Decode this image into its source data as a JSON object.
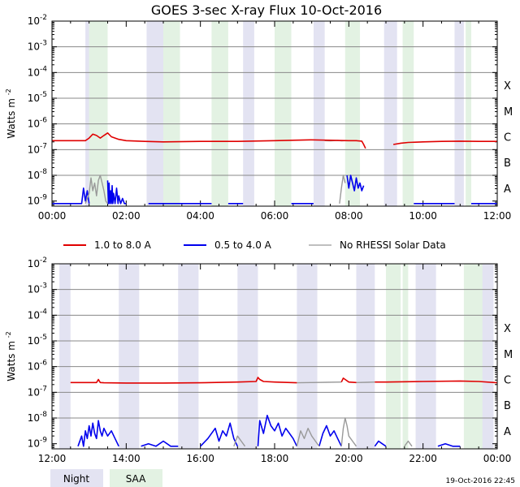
{
  "title": "GOES 3-sec X-ray Flux   10-Oct-2016",
  "ylabel": "Watts m",
  "ylabel_sup": "-2",
  "timestamp": "19-Oct-2016 22:45",
  "class_labels": [
    "X",
    "M",
    "C",
    "B",
    "A"
  ],
  "colors": {
    "long": "#e00000",
    "short": "#0000ee",
    "norhessi": "#999999",
    "night": "#e3e3f2",
    "saa": "#e3f2e3",
    "grid": "#888888"
  },
  "legend": [
    {
      "label": "1.0 to 8.0 A",
      "color": "#e00000"
    },
    {
      "label": "0.5 to 4.0 A",
      "color": "#0000ee"
    },
    {
      "label": "No RHESSI Solar Data",
      "color": "#999999"
    }
  ],
  "key": [
    {
      "label": "Night",
      "color": "#e3e3f2"
    },
    {
      "label": "SAA",
      "color": "#e3f2e3"
    }
  ],
  "chart_data": [
    {
      "type": "line",
      "x_unit": "hours UT",
      "xlim": [
        0,
        12
      ],
      "ylim_exp": [
        -9.2,
        -2
      ],
      "y_scale": "log",
      "xticks": [
        "00:00",
        "02:00",
        "04:00",
        "06:00",
        "08:00",
        "10:00",
        "12:00"
      ],
      "yticks": [
        "10-9",
        "10-8",
        "10-7",
        "10-6",
        "10-5",
        "10-4",
        "10-3",
        "10-2"
      ],
      "night": [
        [
          0.9,
          1.5
        ],
        [
          2.55,
          3.0
        ],
        [
          5.15,
          5.45
        ],
        [
          7.05,
          7.35
        ],
        [
          8.95,
          9.3
        ],
        [
          10.85,
          11.1
        ]
      ],
      "saa": [
        [
          1.0,
          1.5
        ],
        [
          3.0,
          3.45
        ],
        [
          4.3,
          4.75
        ],
        [
          6.0,
          6.45
        ],
        [
          7.9,
          8.3
        ],
        [
          9.45,
          9.75
        ],
        [
          11.15,
          11.3
        ]
      ],
      "long_series": [
        {
          "x": [
            0,
            0.9,
            1.0,
            1.1,
            1.2,
            1.3,
            1.4,
            1.5,
            1.6,
            1.8,
            2.0,
            2.5,
            3.0,
            4.0,
            5.0,
            6.0,
            7.0,
            8.0,
            8.2,
            8.35,
            8.4,
            8.45
          ],
          "y": [
            -6.65,
            -6.65,
            -6.55,
            -6.4,
            -6.45,
            -6.55,
            -6.45,
            -6.35,
            -6.5,
            -6.6,
            -6.65,
            -6.68,
            -6.7,
            -6.68,
            -6.68,
            -6.65,
            -6.62,
            -6.65,
            -6.65,
            -6.67,
            -6.8,
            -6.95
          ]
        },
        {
          "x": [
            9.2,
            9.4,
            9.6,
            10.0,
            10.5,
            11.0,
            11.5,
            12.0
          ],
          "y": [
            -6.8,
            -6.75,
            -6.72,
            -6.7,
            -6.68,
            -6.67,
            -6.68,
            -6.68
          ]
        }
      ],
      "short_series": [
        {
          "x": [
            0,
            0.8,
            0.85,
            0.9,
            0.95,
            1.0
          ],
          "y": [
            -9.1,
            -9.1,
            -8.5,
            -9.0,
            -8.6,
            -9.1
          ]
        },
        {
          "x": [
            1.5,
            1.52,
            1.54,
            1.56,
            1.58,
            1.6,
            1.62,
            1.64,
            1.66,
            1.7,
            1.74,
            1.78,
            1.8,
            1.85,
            1.9,
            1.95,
            2.0
          ],
          "y": [
            -8.2,
            -9.1,
            -8.3,
            -9.1,
            -8.6,
            -9.1,
            -8.4,
            -9.1,
            -8.7,
            -9.1,
            -8.5,
            -9.1,
            -8.8,
            -9.1,
            -8.9,
            -9.1,
            -9.1
          ]
        },
        {
          "x": [
            2.6,
            4.3
          ],
          "y": [
            -9.1,
            -9.1
          ]
        },
        {
          "x": [
            4.75,
            5.15
          ],
          "y": [
            -9.1,
            -9.1
          ]
        },
        {
          "x": [
            6.45,
            7.05
          ],
          "y": [
            -9.1,
            -9.1
          ]
        },
        {
          "x": [
            7.95,
            8.0,
            8.05,
            8.1,
            8.15,
            8.2,
            8.25,
            8.3,
            8.35,
            8.4
          ],
          "y": [
            -8.0,
            -8.5,
            -8.0,
            -8.3,
            -8.6,
            -8.1,
            -8.5,
            -8.3,
            -8.6,
            -8.4
          ]
        },
        {
          "x": [
            9.75,
            10.85
          ],
          "y": [
            -9.1,
            -9.1
          ]
        },
        {
          "x": [
            11.3,
            12.0
          ],
          "y": [
            -9.1,
            -9.1
          ]
        }
      ],
      "gray_series": [
        {
          "x": [
            0.9,
            1.0,
            1.05,
            1.1,
            1.15,
            1.2,
            1.25,
            1.3,
            1.35,
            1.4,
            1.45,
            1.5
          ],
          "y": [
            -9.1,
            -8.7,
            -8.1,
            -8.6,
            -8.3,
            -8.8,
            -8.2,
            -8.0,
            -8.3,
            -8.6,
            -9.0,
            -9.1
          ]
        },
        {
          "x": [
            7.75,
            7.8,
            7.85,
            7.9
          ],
          "y": [
            -9.1,
            -8.5,
            -8.0,
            -8.3
          ]
        },
        {
          "x": [
            7.35,
            7.5,
            7.6,
            7.7,
            7.8,
            7.9,
            8.0
          ],
          "y": [
            -6.65,
            -6.66,
            -6.65,
            -6.64,
            -6.66,
            -6.65,
            -6.65
          ]
        }
      ]
    },
    {
      "type": "line",
      "x_unit": "hours UT",
      "xlim": [
        12,
        24
      ],
      "ylim_exp": [
        -9.2,
        -2
      ],
      "y_scale": "log",
      "xticks": [
        "12:00",
        "14:00",
        "16:00",
        "18:00",
        "20:00",
        "22:00",
        "00:00"
      ],
      "yticks": [
        "10-9",
        "10-8",
        "10-7",
        "10-6",
        "10-5",
        "10-4",
        "10-3",
        "10-2"
      ],
      "night": [
        [
          12.2,
          12.5
        ],
        [
          13.8,
          14.35
        ],
        [
          15.4,
          15.95
        ],
        [
          17.0,
          17.55
        ],
        [
          18.6,
          19.15
        ],
        [
          20.2,
          20.7
        ],
        [
          21.8,
          22.35
        ],
        [
          23.4,
          23.9
        ]
      ],
      "saa": [
        [
          21.0,
          21.4
        ],
        [
          21.45,
          21.6
        ],
        [
          23.1,
          23.6
        ]
      ],
      "long_series": [
        {
          "x": [
            12.5,
            13.0,
            13.2,
            13.25,
            13.3,
            13.4,
            14.0,
            15.0,
            16.0,
            17.0,
            17.5,
            17.55,
            17.6,
            17.7,
            18.0,
            18.6
          ],
          "y": [
            -6.62,
            -6.62,
            -6.62,
            -6.5,
            -6.62,
            -6.63,
            -6.64,
            -6.64,
            -6.63,
            -6.6,
            -6.58,
            -6.42,
            -6.5,
            -6.58,
            -6.6,
            -6.63
          ]
        },
        {
          "x": [
            19.8,
            19.85,
            19.9,
            20.0,
            20.2
          ],
          "y": [
            -6.6,
            -6.45,
            -6.5,
            -6.6,
            -6.62
          ]
        },
        {
          "x": [
            20.7,
            21.0,
            22.0,
            23.0,
            23.5,
            24.0
          ],
          "y": [
            -6.6,
            -6.6,
            -6.58,
            -6.56,
            -6.58,
            -6.63
          ]
        }
      ],
      "short_series": [
        {
          "x": [
            12.7,
            12.8,
            12.85,
            12.9,
            12.95,
            13.0,
            13.05,
            13.1,
            13.15,
            13.2,
            13.25,
            13.3,
            13.35,
            13.4,
            13.5,
            13.6,
            13.7,
            13.8
          ],
          "y": [
            -9.1,
            -8.7,
            -9.1,
            -8.5,
            -8.8,
            -8.3,
            -8.7,
            -8.2,
            -8.6,
            -8.8,
            -8.1,
            -8.5,
            -8.7,
            -8.4,
            -8.7,
            -8.5,
            -8.8,
            -9.1
          ]
        },
        {
          "x": [
            14.4,
            14.6,
            14.8,
            15.0,
            15.2,
            15.4
          ],
          "y": [
            -9.1,
            -9.0,
            -9.1,
            -8.9,
            -9.1,
            -9.1
          ]
        },
        {
          "x": [
            16.0,
            16.2,
            16.4,
            16.5,
            16.6,
            16.7,
            16.8,
            16.9,
            17.0
          ],
          "y": [
            -9.1,
            -8.8,
            -8.4,
            -8.9,
            -8.5,
            -8.7,
            -8.2,
            -8.8,
            -9.1
          ]
        },
        {
          "x": [
            17.55,
            17.6,
            17.7,
            17.8,
            17.9,
            18.0,
            18.1,
            18.2,
            18.3,
            18.4,
            18.5,
            18.6
          ],
          "y": [
            -9.1,
            -8.1,
            -8.6,
            -7.9,
            -8.3,
            -8.5,
            -8.2,
            -8.7,
            -8.4,
            -8.6,
            -8.8,
            -9.1
          ]
        },
        {
          "x": [
            19.2,
            19.3,
            19.4,
            19.5,
            19.6,
            19.7,
            19.8
          ],
          "y": [
            -9.1,
            -8.6,
            -8.3,
            -8.7,
            -8.5,
            -8.8,
            -9.1
          ]
        },
        {
          "x": [
            20.7,
            20.8,
            20.9,
            21.0
          ],
          "y": [
            -9.1,
            -8.9,
            -9.0,
            -9.1
          ]
        },
        {
          "x": [
            22.4,
            22.6,
            22.8,
            23.0
          ],
          "y": [
            -9.1,
            -9.0,
            -9.1,
            -9.1
          ]
        }
      ],
      "gray_series": [
        {
          "x": [
            16.9,
            17.0,
            17.1,
            17.2
          ],
          "y": [
            -9.1,
            -8.7,
            -8.9,
            -9.1
          ]
        },
        {
          "x": [
            18.6,
            18.7,
            18.8,
            18.9,
            19.0,
            19.1,
            19.2
          ],
          "y": [
            -9.1,
            -8.5,
            -8.8,
            -8.4,
            -8.7,
            -8.9,
            -9.1
          ]
        },
        {
          "x": [
            19.8,
            19.85,
            19.9,
            19.95,
            20.0,
            20.1,
            20.2
          ],
          "y": [
            -9.1,
            -8.4,
            -8.0,
            -8.3,
            -8.7,
            -8.9,
            -9.1
          ]
        },
        {
          "x": [
            18.6,
            19.0,
            19.4,
            19.8
          ],
          "y": [
            -6.63,
            -6.62,
            -6.61,
            -6.6
          ]
        },
        {
          "x": [
            20.2,
            20.5,
            20.7
          ],
          "y": [
            -6.62,
            -6.61,
            -6.6
          ]
        },
        {
          "x": [
            21.5,
            21.6,
            21.7
          ],
          "y": [
            -9.1,
            -8.9,
            -9.1
          ]
        }
      ]
    }
  ]
}
